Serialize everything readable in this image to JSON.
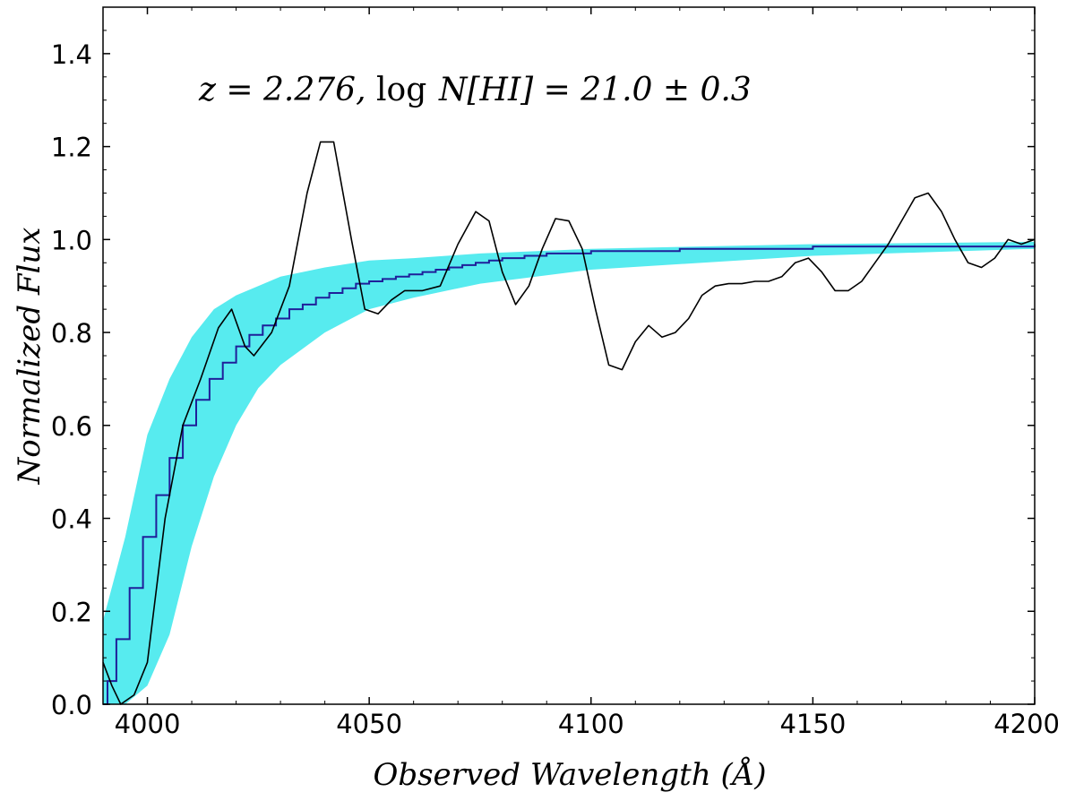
{
  "chart_data": {
    "type": "line",
    "title": "",
    "annotation": {
      "z_part": "z = 2.276,",
      "log_part": "log",
      "n_part": "N[HI] = 21.0 ± 0.3"
    },
    "xlabel": "Observed Wavelength (Å)",
    "ylabel": "Normalized Flux",
    "xlim": [
      3990,
      4200
    ],
    "ylim": [
      0.0,
      1.5
    ],
    "xticks": [
      4000,
      4050,
      4100,
      4150,
      4200
    ],
    "yticks": [
      0.0,
      0.2,
      0.4,
      0.6,
      0.8,
      1.0,
      1.2,
      1.4
    ],
    "ytick_labels": [
      "0.0",
      "0.2",
      "0.4",
      "0.6",
      "0.8",
      "1.0",
      "1.2",
      "1.4"
    ],
    "xtick_labels": [
      "4000",
      "4050",
      "4100",
      "4150",
      "4200"
    ],
    "grid": false,
    "colors": {
      "band": "#57ebef",
      "model": "#1f1f9a",
      "spectrum": "#000000"
    },
    "band": {
      "x": [
        3990,
        3995,
        4000,
        4005,
        4010,
        4015,
        4020,
        4025,
        4030,
        4040,
        4050,
        4060,
        4075,
        4100,
        4150,
        4200
      ],
      "upper": [
        0.18,
        0.36,
        0.58,
        0.7,
        0.79,
        0.85,
        0.88,
        0.9,
        0.92,
        0.94,
        0.955,
        0.96,
        0.97,
        0.98,
        0.99,
        0.995
      ],
      "lower": [
        0.0,
        0.0,
        0.04,
        0.15,
        0.34,
        0.49,
        0.6,
        0.68,
        0.73,
        0.8,
        0.85,
        0.875,
        0.905,
        0.935,
        0.965,
        0.98
      ]
    },
    "model_step": {
      "x": [
        3990,
        3991,
        3993,
        3996,
        3999,
        4002,
        4005,
        4008,
        4011,
        4014,
        4017,
        4020,
        4023,
        4026,
        4029,
        4032,
        4035,
        4038,
        4041,
        4044,
        4047,
        4050,
        4053,
        4056,
        4059,
        4062,
        4065,
        4068,
        4071,
        4074,
        4077,
        4080,
        4085,
        4090,
        4100,
        4120,
        4150,
        4200
      ],
      "y": [
        0.0,
        0.05,
        0.14,
        0.25,
        0.36,
        0.45,
        0.53,
        0.6,
        0.655,
        0.7,
        0.735,
        0.77,
        0.795,
        0.815,
        0.83,
        0.85,
        0.86,
        0.875,
        0.885,
        0.895,
        0.905,
        0.91,
        0.915,
        0.92,
        0.925,
        0.93,
        0.935,
        0.94,
        0.945,
        0.95,
        0.955,
        0.96,
        0.965,
        0.97,
        0.975,
        0.98,
        0.985,
        0.99
      ]
    },
    "spectrum": {
      "x": [
        3990,
        3992,
        3994,
        3997,
        4000,
        4004,
        4008,
        4012,
        4016,
        4019,
        4022,
        4024,
        4028,
        4032,
        4036,
        4039,
        4042,
        4046,
        4049,
        4052,
        4055,
        4058,
        4062,
        4066,
        4070,
        4074,
        4077,
        4080,
        4083,
        4086,
        4089,
        4092,
        4095,
        4098,
        4101,
        4104,
        4107,
        4110,
        4113,
        4116,
        4119,
        4122,
        4125,
        4128,
        4131,
        4134,
        4137,
        4140,
        4143,
        4146,
        4149,
        4152,
        4155,
        4158,
        4161,
        4164,
        4167,
        4170,
        4173,
        4176,
        4179,
        4182,
        4185,
        4188,
        4191,
        4194,
        4197,
        4200
      ],
      "y": [
        0.09,
        0.04,
        0.0,
        0.02,
        0.09,
        0.4,
        0.6,
        0.7,
        0.81,
        0.85,
        0.77,
        0.75,
        0.8,
        0.9,
        1.1,
        1.21,
        1.21,
        1.0,
        0.85,
        0.84,
        0.87,
        0.89,
        0.89,
        0.9,
        0.99,
        1.06,
        1.04,
        0.93,
        0.86,
        0.9,
        0.98,
        1.045,
        1.04,
        0.98,
        0.85,
        0.73,
        0.72,
        0.78,
        0.815,
        0.79,
        0.8,
        0.83,
        0.88,
        0.9,
        0.905,
        0.905,
        0.91,
        0.91,
        0.92,
        0.95,
        0.96,
        0.93,
        0.89,
        0.89,
        0.91,
        0.95,
        0.99,
        1.04,
        1.09,
        1.1,
        1.06,
        1.0,
        0.95,
        0.94,
        0.96,
        1.0,
        0.99,
        1.0
      ]
    }
  }
}
